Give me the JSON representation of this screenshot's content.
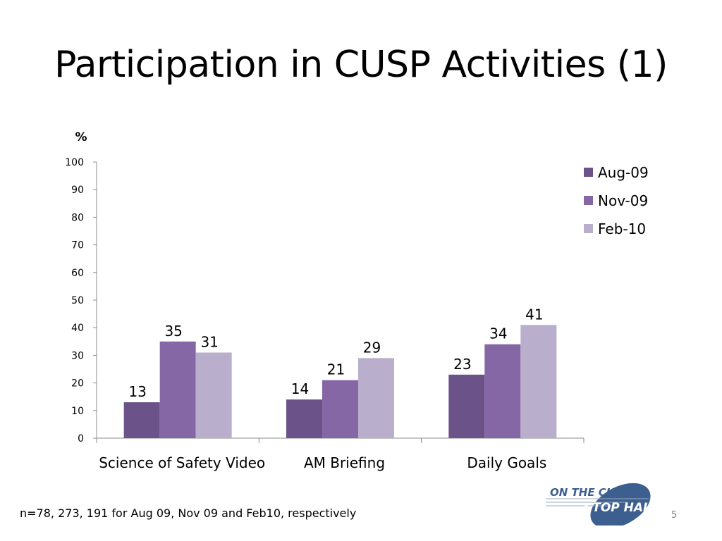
{
  "slide": {
    "title": "Participation in CUSP Activities (1)",
    "footnote": "n=78, 273, 191 for Aug 09, Nov 09 and Feb10, respectively",
    "slide_number": "5",
    "logo": {
      "line1": "ON THE CUSP:",
      "line2": "STOP HAI"
    }
  },
  "colors": {
    "Aug-09": "#6b5289",
    "Nov-09": "#8667a6",
    "Feb-10": "#b9afcc"
  },
  "chart_data": {
    "type": "bar",
    "ylabel": "%",
    "ylim": [
      0,
      100
    ],
    "yticks": [
      0,
      10,
      20,
      30,
      40,
      50,
      60,
      70,
      80,
      90,
      100
    ],
    "categories": [
      "Science of Safety Video",
      "AM Briefing",
      "Daily Goals"
    ],
    "series": [
      {
        "name": "Aug-09",
        "values": [
          13,
          14,
          23
        ]
      },
      {
        "name": "Nov-09",
        "values": [
          35,
          21,
          34
        ]
      },
      {
        "name": "Feb-10",
        "values": [
          31,
          29,
          41
        ]
      }
    ],
    "legend": "right",
    "data_labels": true,
    "grid": false
  }
}
